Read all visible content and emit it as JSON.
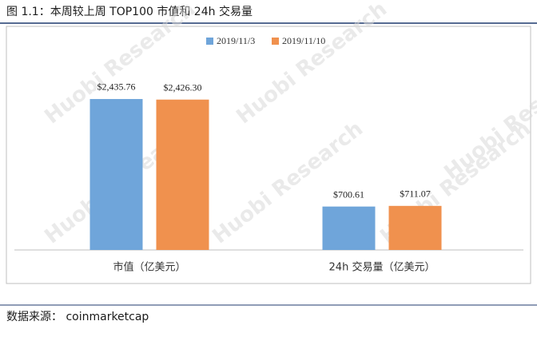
{
  "chart_data": {
    "type": "bar",
    "title": "图 1.1：本周较上周 TOP100 市值和 24h 交易量",
    "categories": [
      "市值（亿美元）",
      "24h 交易量（亿美元）"
    ],
    "series": [
      {
        "name": "2019/11/3",
        "color": "#6fa5da",
        "values": [
          2435.76,
          700.61
        ],
        "value_labels": [
          "$2,435.76",
          "$700.61"
        ]
      },
      {
        "name": "2019/11/10",
        "color": "#f0914e",
        "values": [
          2426.3,
          711.07
        ],
        "value_labels": [
          "$2,426.30",
          "$711.07"
        ]
      }
    ],
    "legend": "top",
    "watermark": "Huobi Research",
    "source": "数据来源： coinmarketcap"
  }
}
